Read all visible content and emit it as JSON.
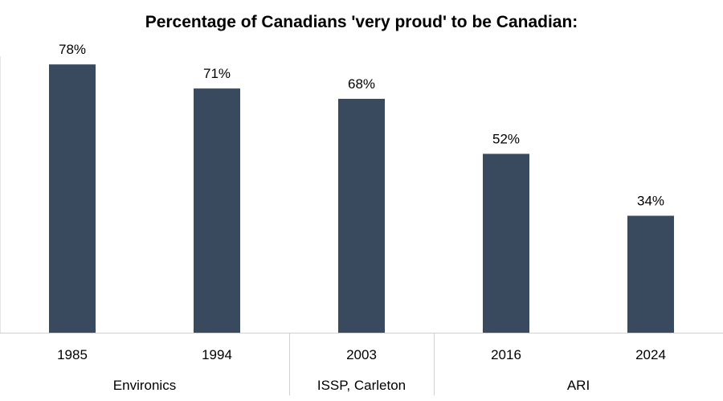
{
  "chart_data": {
    "type": "bar",
    "title": "Percentage of Canadians 'very proud' to be Canadian:",
    "categories": [
      "1985",
      "1994",
      "2003",
      "2016",
      "2024"
    ],
    "values": [
      78,
      71,
      68,
      52,
      34
    ],
    "value_labels": [
      "78%",
      "71%",
      "68%",
      "52%",
      "34%"
    ],
    "groups": [
      {
        "label": "Environics",
        "categories": [
          "1985",
          "1994"
        ]
      },
      {
        "label": "ISSP, Carleton",
        "categories": [
          "2003"
        ]
      },
      {
        "label": "ARI",
        "categories": [
          "2016",
          "2024"
        ]
      }
    ],
    "ylim": [
      0,
      100
    ],
    "grid": false,
    "legend": "none",
    "bar_color": "#3a4a5e"
  }
}
